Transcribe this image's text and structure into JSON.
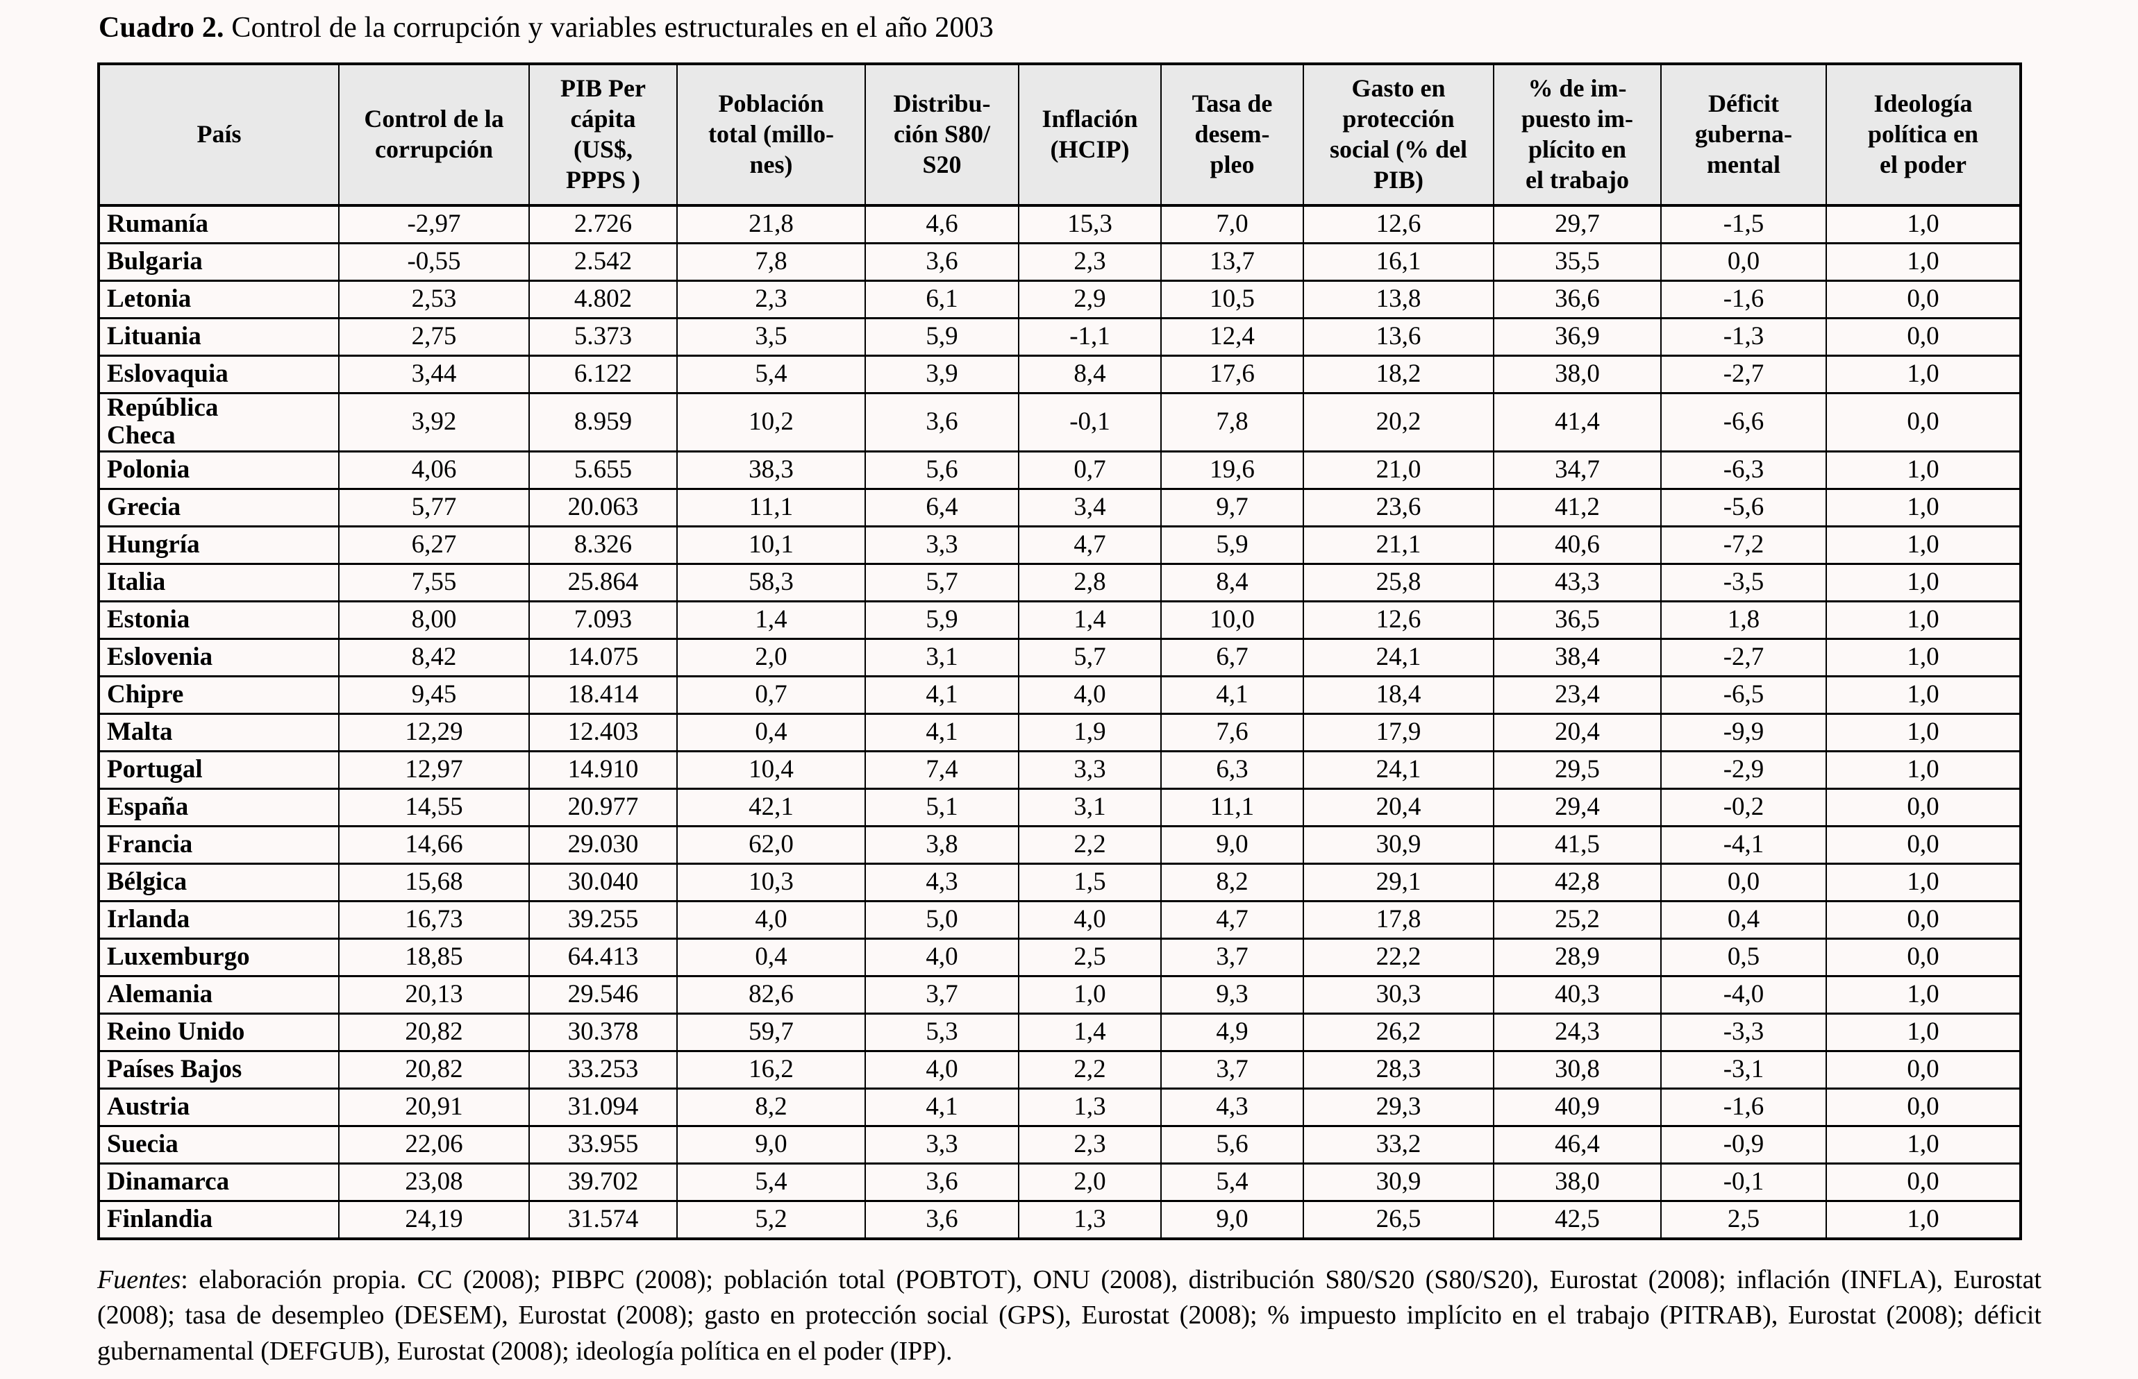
{
  "title": {
    "label": "Cuadro 2.",
    "text": " Control de la corrupción y variables estructurales en el año 2003"
  },
  "table": {
    "columns": [
      {
        "label": "País"
      },
      {
        "label": "Control de la\ncorrupción"
      },
      {
        "label": "PIB Per\ncápita\n(US$,\nPPPS )"
      },
      {
        "label": "Población\ntotal (millo-\nnes)"
      },
      {
        "label": "Distribu-\nción S80/\nS20"
      },
      {
        "label": "Inflación\n(HCIP)"
      },
      {
        "label": "Tasa de\ndesem-\npleo"
      },
      {
        "label": "Gasto en\nprotección\nsocial (% del\nPIB)"
      },
      {
        "label": "% de im-\npuesto im-\nplícito en\nel trabajo"
      },
      {
        "label": "Déficit\nguberna-\nmental"
      },
      {
        "label": "Ideología\npolítica en\nel poder"
      }
    ],
    "rows": [
      {
        "country": "Rumanía",
        "values": [
          "-2,97",
          "2.726",
          "21,8",
          "4,6",
          "15,3",
          "7,0",
          "12,6",
          "29,7",
          "-1,5",
          "1,0"
        ]
      },
      {
        "country": "Bulgaria",
        "values": [
          "-0,55",
          "2.542",
          "7,8",
          "3,6",
          "2,3",
          "13,7",
          "16,1",
          "35,5",
          "0,0",
          "1,0"
        ]
      },
      {
        "country": "Letonia",
        "values": [
          "2,53",
          "4.802",
          "2,3",
          "6,1",
          "2,9",
          "10,5",
          "13,8",
          "36,6",
          "-1,6",
          "0,0"
        ]
      },
      {
        "country": "Lituania",
        "values": [
          "2,75",
          "5.373",
          "3,5",
          "5,9",
          "-1,1",
          "12,4",
          "13,6",
          "36,9",
          "-1,3",
          "0,0"
        ]
      },
      {
        "country": "Eslovaquia",
        "values": [
          "3,44",
          "6.122",
          "5,4",
          "3,9",
          "8,4",
          "17,6",
          "18,2",
          "38,0",
          "-2,7",
          "1,0"
        ]
      },
      {
        "country": "República\nCheca",
        "values": [
          "3,92",
          "8.959",
          "10,2",
          "3,6",
          "-0,1",
          "7,8",
          "20,2",
          "41,4",
          "-6,6",
          "0,0"
        ]
      },
      {
        "country": "Polonia",
        "values": [
          "4,06",
          "5.655",
          "38,3",
          "5,6",
          "0,7",
          "19,6",
          "21,0",
          "34,7",
          "-6,3",
          "1,0"
        ]
      },
      {
        "country": "Grecia",
        "values": [
          "5,77",
          "20.063",
          "11,1",
          "6,4",
          "3,4",
          "9,7",
          "23,6",
          "41,2",
          "-5,6",
          "1,0"
        ]
      },
      {
        "country": "Hungría",
        "values": [
          "6,27",
          "8.326",
          "10,1",
          "3,3",
          "4,7",
          "5,9",
          "21,1",
          "40,6",
          "-7,2",
          "1,0"
        ]
      },
      {
        "country": "Italia",
        "values": [
          "7,55",
          "25.864",
          "58,3",
          "5,7",
          "2,8",
          "8,4",
          "25,8",
          "43,3",
          "-3,5",
          "1,0"
        ]
      },
      {
        "country": "Estonia",
        "values": [
          "8,00",
          "7.093",
          "1,4",
          "5,9",
          "1,4",
          "10,0",
          "12,6",
          "36,5",
          "1,8",
          "1,0"
        ]
      },
      {
        "country": "Eslovenia",
        "values": [
          "8,42",
          "14.075",
          "2,0",
          "3,1",
          "5,7",
          "6,7",
          "24,1",
          "38,4",
          "-2,7",
          "1,0"
        ]
      },
      {
        "country": "Chipre",
        "values": [
          "9,45",
          "18.414",
          "0,7",
          "4,1",
          "4,0",
          "4,1",
          "18,4",
          "23,4",
          "-6,5",
          "1,0"
        ]
      },
      {
        "country": "Malta",
        "values": [
          "12,29",
          "12.403",
          "0,4",
          "4,1",
          "1,9",
          "7,6",
          "17,9",
          "20,4",
          "-9,9",
          "1,0"
        ]
      },
      {
        "country": "Portugal",
        "values": [
          "12,97",
          "14.910",
          "10,4",
          "7,4",
          "3,3",
          "6,3",
          "24,1",
          "29,5",
          "-2,9",
          "1,0"
        ]
      },
      {
        "country": "España",
        "values": [
          "14,55",
          "20.977",
          "42,1",
          "5,1",
          "3,1",
          "11,1",
          "20,4",
          "29,4",
          "-0,2",
          "0,0"
        ]
      },
      {
        "country": "Francia",
        "values": [
          "14,66",
          "29.030",
          "62,0",
          "3,8",
          "2,2",
          "9,0",
          "30,9",
          "41,5",
          "-4,1",
          "0,0"
        ]
      },
      {
        "country": "Bélgica",
        "values": [
          "15,68",
          "30.040",
          "10,3",
          "4,3",
          "1,5",
          "8,2",
          "29,1",
          "42,8",
          "0,0",
          "1,0"
        ]
      },
      {
        "country": "Irlanda",
        "values": [
          "16,73",
          "39.255",
          "4,0",
          "5,0",
          "4,0",
          "4,7",
          "17,8",
          "25,2",
          "0,4",
          "0,0"
        ]
      },
      {
        "country": "Luxemburgo",
        "values": [
          "18,85",
          "64.413",
          "0,4",
          "4,0",
          "2,5",
          "3,7",
          "22,2",
          "28,9",
          "0,5",
          "0,0"
        ]
      },
      {
        "country": "Alemania",
        "values": [
          "20,13",
          "29.546",
          "82,6",
          "3,7",
          "1,0",
          "9,3",
          "30,3",
          "40,3",
          "-4,0",
          "1,0"
        ]
      },
      {
        "country": "Reino Unido",
        "values": [
          "20,82",
          "30.378",
          "59,7",
          "5,3",
          "1,4",
          "4,9",
          "26,2",
          "24,3",
          "-3,3",
          "1,0"
        ]
      },
      {
        "country": "Países Bajos",
        "values": [
          "20,82",
          "33.253",
          "16,2",
          "4,0",
          "2,2",
          "3,7",
          "28,3",
          "30,8",
          "-3,1",
          "0,0"
        ]
      },
      {
        "country": "Austria",
        "values": [
          "20,91",
          "31.094",
          "8,2",
          "4,1",
          "1,3",
          "4,3",
          "29,3",
          "40,9",
          "-1,6",
          "0,0"
        ]
      },
      {
        "country": "Suecia",
        "values": [
          "22,06",
          "33.955",
          "9,0",
          "3,3",
          "2,3",
          "5,6",
          "33,2",
          "46,4",
          "-0,9",
          "1,0"
        ]
      },
      {
        "country": "Dinamarca",
        "values": [
          "23,08",
          "39.702",
          "5,4",
          "3,6",
          "2,0",
          "5,4",
          "30,9",
          "38,0",
          "-0,1",
          "0,0"
        ]
      },
      {
        "country": "Finlandia",
        "values": [
          "24,19",
          "31.574",
          "5,2",
          "3,6",
          "1,3",
          "9,0",
          "26,5",
          "42,5",
          "2,5",
          "1,0"
        ]
      }
    ]
  },
  "footer": {
    "source_label": "Fuentes",
    "source_text": ": elaboración propia. CC (2008); PIBPC (2008); población total (POBTOT), ONU (2008), distribución S80/S20 (S80/S20), Eurostat (2008); inflación (INFLA), Eurostat (2008); tasa de desempleo (DESEM), Eurostat (2008); gasto en protección social (GPS), Eurostat (2008); % impuesto implícito en el trabajo (PITRAB), Eurostat (2008); déficit gubernamental (DEFGUB), Eurostat (2008); ideología política en el poder (IPP)."
  },
  "colors": {
    "page_bg": "#fdf9f8",
    "header_bg": "#e9e9e9",
    "border": "#000000"
  }
}
